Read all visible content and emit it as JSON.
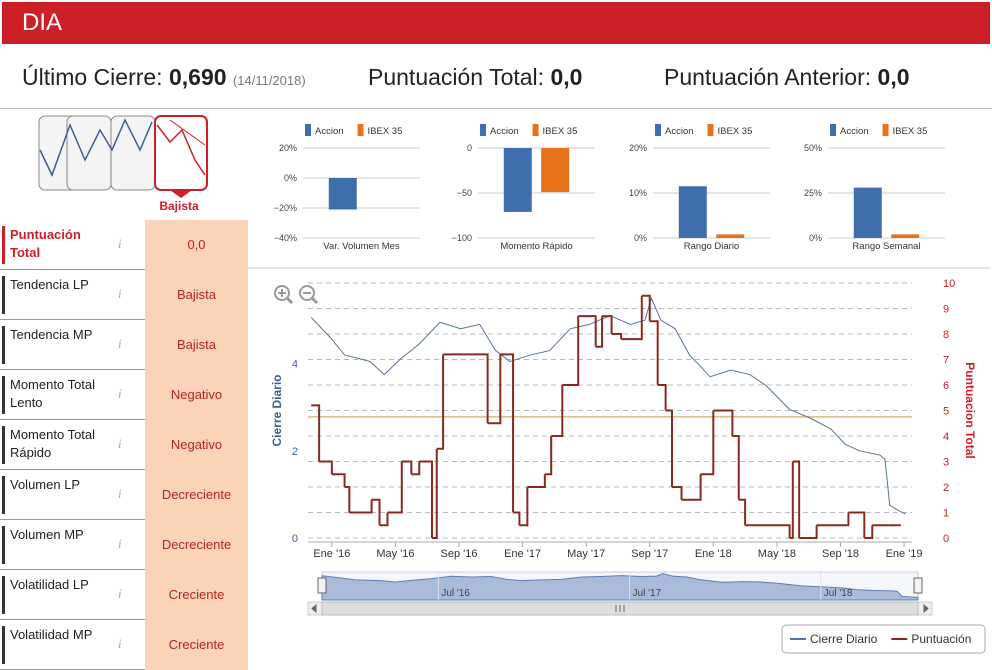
{
  "header": {
    "title": "DIA"
  },
  "summary": {
    "last_close_label": "Último Cierre:",
    "last_close": "0,690",
    "last_close_date": "(14/11/2018)",
    "total_label": "Puntuación Total:",
    "total": "0,0",
    "previous_label": "Puntuación Anterior:",
    "previous": "0,0"
  },
  "trend": {
    "label": "Bajista"
  },
  "table": {
    "rows": [
      [
        "Puntuación Total",
        "0,0"
      ],
      [
        "Tendencia LP",
        "Bajista"
      ],
      [
        "Tendencia MP",
        "Bajista"
      ],
      [
        "Momento Total Lento",
        "Negativo"
      ],
      [
        "Momento Total Rápido",
        "Negativo"
      ],
      [
        "Volumen LP",
        "Decreciente"
      ],
      [
        "Volumen MP",
        "Decreciente"
      ],
      [
        "Volatilidad LP",
        "Creciente"
      ],
      [
        "Volatilidad MP",
        "Creciente"
      ]
    ]
  },
  "chart_data": [
    {
      "type": "bar",
      "title": "Var. Volumen Mes",
      "series": [
        {
          "name": "Accion",
          "color": "#3f6ead",
          "values": [
            -21
          ]
        },
        {
          "name": "IBEX 35",
          "color": "#e8711c",
          "values": [
            null
          ]
        }
      ],
      "ylim": [
        -40,
        20
      ],
      "yticks": [
        {
          "value": 20,
          "label": "20%"
        },
        {
          "value": 0,
          "label": "0%"
        },
        {
          "value": -20,
          "label": "−20%"
        },
        {
          "value": -40,
          "label": "−40%"
        }
      ],
      "grid": true
    },
    {
      "type": "bar",
      "title": "Momento Rápido",
      "series": [
        {
          "name": "Accion",
          "color": "#3f6ead",
          "values": [
            -71
          ]
        },
        {
          "name": "IBEX 35",
          "color": "#e8711c",
          "values": [
            -49
          ]
        }
      ],
      "ylim": [
        -100,
        0
      ],
      "yticks": [
        0,
        {
          "value": -50,
          "label": "−50"
        },
        {
          "value": -100,
          "label": "−100"
        }
      ],
      "grid": true
    },
    {
      "type": "bar",
      "title": "Rango Diario",
      "series": [
        {
          "name": "Accion",
          "color": "#3f6ead",
          "values": [
            11.5
          ]
        },
        {
          "name": "IBEX 35",
          "color": "#e8711c",
          "values": [
            0.8
          ]
        }
      ],
      "ylim": [
        0,
        20
      ],
      "yticks": [
        {
          "value": 20,
          "label": "20%"
        },
        {
          "value": 10,
          "label": "10%"
        },
        {
          "value": 0,
          "label": "0%"
        }
      ],
      "grid": true
    },
    {
      "type": "bar",
      "title": "Rango Semanal",
      "series": [
        {
          "name": "Accion",
          "color": "#3f6ead",
          "values": [
            28
          ]
        },
        {
          "name": "IBEX 35",
          "color": "#e8711c",
          "values": [
            2
          ]
        }
      ],
      "ylim": [
        0,
        50
      ],
      "yticks": [
        {
          "value": 50,
          "label": "50%"
        },
        {
          "value": 25,
          "label": "25%"
        },
        {
          "value": 0,
          "label": "0%"
        }
      ],
      "grid": true
    },
    {
      "type": "line",
      "ylabel": "Cierre Diario",
      "y2label": "Puntuacion Total",
      "grid": true,
      "legend": "bottom-right",
      "xlim": [
        -1.5,
        36.5
      ],
      "xticks": [
        {
          "value": 0,
          "label": "Ene '16"
        },
        {
          "value": 4,
          "label": "May '16"
        },
        {
          "value": 8,
          "label": "Sep '16"
        },
        {
          "value": 12,
          "label": "Ene '17"
        },
        {
          "value": 16,
          "label": "May '17"
        },
        {
          "value": 20,
          "label": "Sep '17"
        },
        {
          "value": 24,
          "label": "Ene '18"
        },
        {
          "value": 28,
          "label": "May '18"
        },
        {
          "value": 32,
          "label": "Sep '18"
        },
        {
          "value": 36,
          "label": "Ene '19"
        }
      ],
      "ylim": [
        0,
        5.85
      ],
      "yticks": [
        0,
        2,
        4
      ],
      "y2lim": [
        0,
        10
      ],
      "y2ticks": [
        0,
        1,
        2,
        3,
        4,
        5,
        6,
        7,
        8,
        9,
        10
      ],
      "y2_line": 4.75,
      "navigator_labels": [
        {
          "value": 6,
          "label": "Jul '16"
        },
        {
          "value": 18,
          "label": "Jul '17"
        },
        {
          "value": 30,
          "label": "Jul '18"
        }
      ],
      "series": [
        {
          "name": "Cierre Diario",
          "color": "#56739f",
          "x": [
            -1.3,
            -0.1,
            0.8,
            2.4,
            3.3,
            4.3,
            5.5,
            6.8,
            8.1,
            9.3,
            10.3,
            11.2,
            12.5,
            13.7,
            15.0,
            16.2,
            17.5,
            18.8,
            19.7,
            20.1,
            20.7,
            21.6,
            22.5,
            23.8,
            25.1,
            26.3,
            27.3,
            28.8,
            30.1,
            31.4,
            32.3,
            33.2,
            34.5,
            34.8,
            35.1,
            35.8,
            36.1
          ],
          "values": [
            5.06,
            4.6,
            4.2,
            4.05,
            3.75,
            4.1,
            4.45,
            4.95,
            4.8,
            4.9,
            4.3,
            4.05,
            4.2,
            4.3,
            4.8,
            4.9,
            5.1,
            4.9,
            5.0,
            5.5,
            5.0,
            4.8,
            4.2,
            3.7,
            3.85,
            3.75,
            3.5,
            2.95,
            2.75,
            2.5,
            2.15,
            2.0,
            1.9,
            1.8,
            0.75,
            0.6,
            0.55
          ]
        },
        {
          "name": "Puntuación",
          "color": "#8a2a1e",
          "axis": "y2",
          "step": true,
          "x": [
            -1.3,
            -0.8,
            0,
            0.8,
            1.1,
            2.5,
            3.0,
            3.5,
            4.4,
            5.0,
            5.5,
            6.3,
            6.6,
            7.0,
            9.8,
            10.6,
            11.4,
            11.8,
            12.3,
            13.4,
            13.8,
            14.5,
            15.5,
            16.6,
            17.0,
            17.6,
            18.2,
            19.5,
            20.0,
            20.5,
            21.0,
            21.4,
            22.0,
            23.2,
            24.0,
            25.2,
            25.6,
            26.0,
            27.5,
            28.8,
            29.0,
            29.4,
            30.5,
            32.5,
            33.5,
            34.0,
            35.0,
            35.8
          ],
          "values": [
            5.2,
            3.0,
            2.5,
            2.0,
            1.0,
            1.5,
            0.5,
            1.0,
            3.0,
            2.5,
            3.0,
            0,
            3.5,
            7.2,
            4.5,
            7.2,
            1.0,
            0.5,
            2.0,
            2.5,
            4.0,
            6.0,
            8.7,
            7.5,
            8.7,
            8.0,
            7.8,
            9.5,
            8.5,
            6.0,
            5.0,
            2.0,
            1.5,
            2.5,
            5.0,
            4.0,
            1.5,
            0.5,
            0.5,
            0,
            3.0,
            0,
            0.5,
            1.0,
            0,
            0.5,
            0.5,
            0.5
          ]
        }
      ]
    }
  ]
}
